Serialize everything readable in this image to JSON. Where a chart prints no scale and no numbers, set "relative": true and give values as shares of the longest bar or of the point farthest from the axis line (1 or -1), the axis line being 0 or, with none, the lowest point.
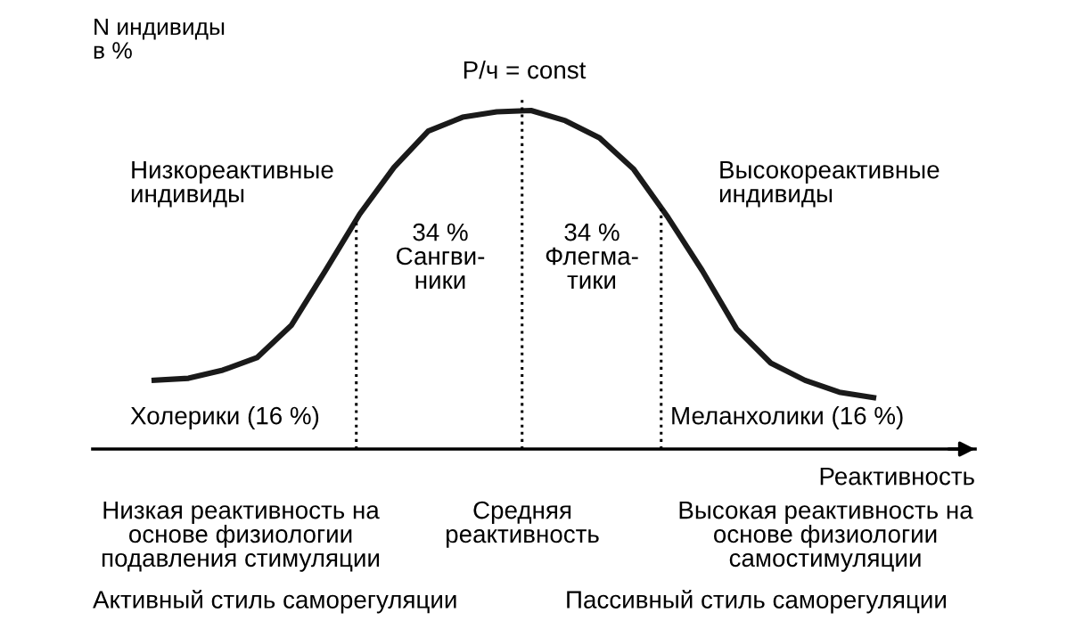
{
  "chart_data": {
    "type": "line",
    "relative": true,
    "tick_labels": false,
    "color": "#1a1a1a",
    "ylabel": "N индивиды\nв %",
    "xlabel": "Реактивность",
    "categories": [
      null,
      null,
      null,
      null,
      null,
      null,
      null,
      null,
      null,
      null,
      null,
      null,
      null,
      null,
      null,
      null,
      null,
      null,
      null,
      null,
      null,
      null
    ],
    "values": [
      0.203,
      0.209,
      0.233,
      0.27,
      0.365,
      0.527,
      0.694,
      0.832,
      0.939,
      0.98,
      0.996,
      1.0,
      0.97,
      0.919,
      0.826,
      0.684,
      0.527,
      0.355,
      0.254,
      0.203,
      0.168,
      0.152
    ],
    "annotations": [
      "P/ч = const",
      "Низкореактивные\nиндивиды",
      "Высокореактивные\nиндивиды",
      "34 %\nСангви-\nники",
      "34 %\nФлегма-\nтики",
      "Холерики (16 %)",
      "Меланхолики (16 %)",
      "Низкая реактивность на\nоснове физиологии\nподавления стимуляции",
      "Средняя\nреактивность",
      "Высокая реактивность на\nоснове физиологии\nсамостимуляции",
      "Активный стиль саморегуляции",
      "Пассивный стиль саморегуляции"
    ]
  }
}
